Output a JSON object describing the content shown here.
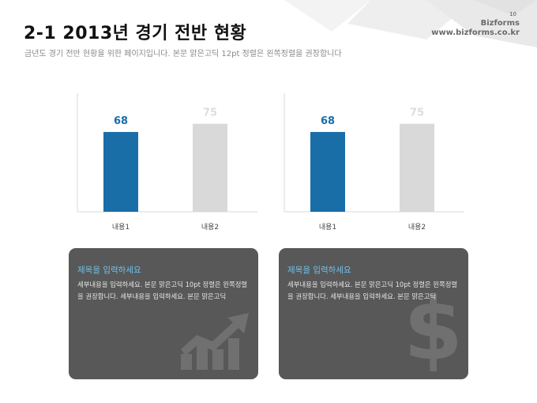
{
  "header": {
    "title": "2-1 2013년 경기 전반 현황",
    "subtitle": "금년도 경기 전반 현황을 위한 페이지입니다. 본문 맑은고딕 12pt 정렬은 왼쪽정렬을 권장합니다",
    "page_number": "10",
    "brand_name": "Bizforms",
    "brand_url": "www.bizforms.co.kr"
  },
  "chart_data": [
    {
      "type": "bar",
      "categories": [
        "내용1",
        "내용2"
      ],
      "values": [
        68,
        75
      ],
      "data_labels": [
        "68",
        "75"
      ],
      "ylim": [
        0,
        100
      ],
      "colors": [
        "#1a6ea8",
        "#d9d9d9"
      ],
      "label_colors": [
        "#1a6ea8",
        "#dddddd"
      ],
      "grid": false
    },
    {
      "type": "bar",
      "categories": [
        "내용1",
        "내용2"
      ],
      "values": [
        68,
        75
      ],
      "data_labels": [
        "68",
        "75"
      ],
      "ylim": [
        0,
        100
      ],
      "colors": [
        "#1a6ea8",
        "#d9d9d9"
      ],
      "label_colors": [
        "#1a6ea8",
        "#dddddd"
      ],
      "grid": false
    }
  ],
  "cards": [
    {
      "title": "제목을 입력하세요",
      "body": "세부내용을 입력하세요. 본문 맑은고딕 10pt 정렬은 왼쪽정렬을 권장합니다. 세부내용을 입력하세요. 본문 맑은고딕",
      "icon": "growth-chart-icon"
    },
    {
      "title": "제목을 입력하세요",
      "body": "세부내용을 입력하세요. 본문 맑은고딕 10pt 정렬은 왼쪽정렬을 권장합니다. 세부내용을 입력하세요. 본문 맑은고딕",
      "icon": "dollar-icon"
    }
  ]
}
